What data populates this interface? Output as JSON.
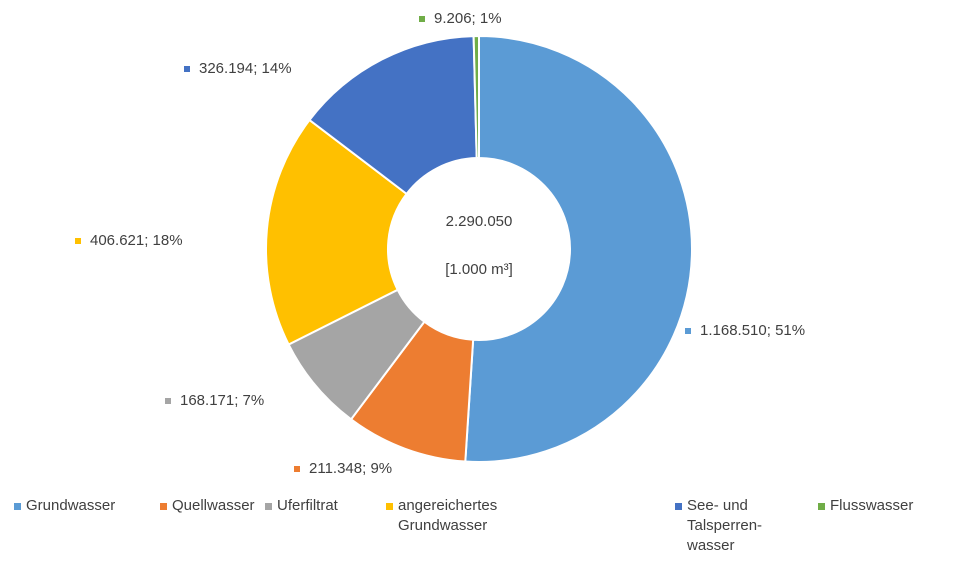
{
  "chart_data": {
    "type": "donut",
    "center_text": "2.290.050",
    "center_unit": "[1.000 m³]",
    "categories": [
      "Grundwasser",
      "Quellwasser",
      "Uferfiltrat",
      "angereichertes Grundwasser",
      "See- und Talsperren-wasser",
      "Flusswasser"
    ],
    "values": [
      1168510,
      211348,
      168171,
      406621,
      326194,
      9206
    ],
    "value_labels": [
      "1.168.510; 51%",
      "211.348; 9%",
      "168.171; 7%",
      "406.621; 18%",
      "326.194; 14%",
      "9.206; 1%"
    ],
    "colors": [
      "#5b9bd5",
      "#ed7d31",
      "#a5a5a5",
      "#ffc000",
      "#4472c4",
      "#70ad47"
    ],
    "legend": "bottom"
  }
}
